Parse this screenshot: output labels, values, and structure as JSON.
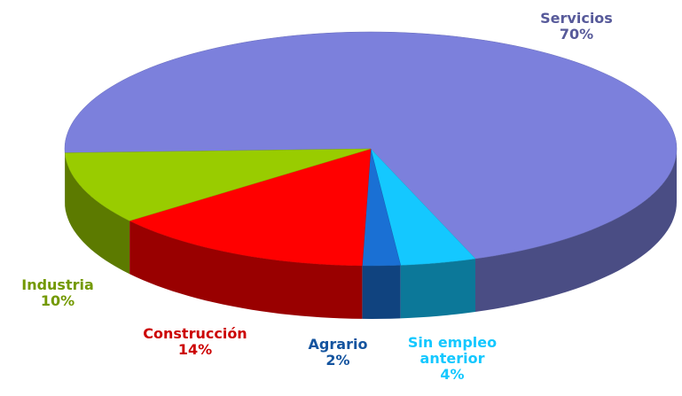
{
  "chart_data": {
    "type": "pie3d",
    "categories": [
      "Servicios",
      "Sin empleo anterior",
      "Agrario",
      "Construcción",
      "Industria"
    ],
    "values": [
      70,
      4,
      2,
      14,
      10
    ],
    "value_labels": [
      "70%",
      "4%",
      "2%",
      "14%",
      "10%"
    ],
    "colors": [
      "#7c80dc",
      "#14c8ff",
      "#1a70d4",
      "#ff0000",
      "#99cc00"
    ]
  }
}
